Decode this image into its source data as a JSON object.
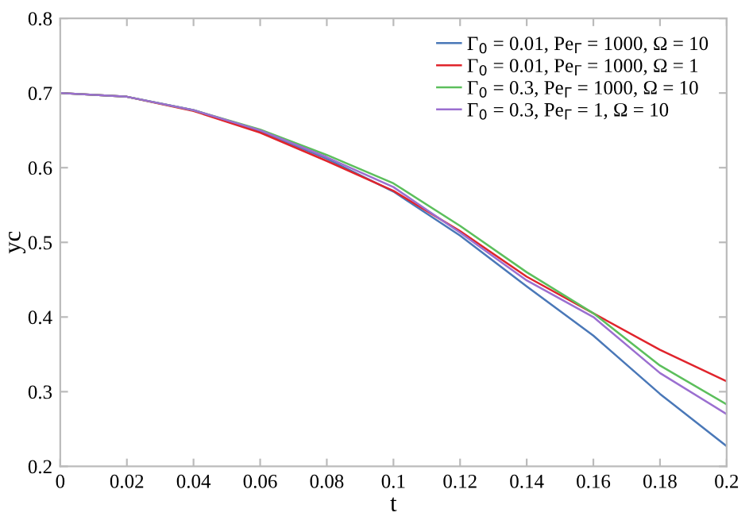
{
  "chart_data": {
    "type": "line",
    "xlabel": "t",
    "ylabel": "yc",
    "x": [
      0,
      0.02,
      0.04,
      0.06,
      0.08,
      0.1,
      0.12,
      0.14,
      0.16,
      0.18,
      0.2
    ],
    "series": [
      {
        "name": "Γ$_{0}$ = 0.01, Pe$_{Γ}$ = 1000, Ω = 10",
        "color": "#4a78b8",
        "values": [
          0.7,
          0.695,
          0.677,
          0.649,
          0.612,
          0.568,
          0.509,
          0.441,
          0.375,
          0.297,
          0.227
        ]
      },
      {
        "name": "Γ$_{0}$ = 0.01, Pe$_{Γ}$ = 1000, Ω = 1",
        "color": "#e0242c",
        "values": [
          0.7,
          0.695,
          0.676,
          0.647,
          0.609,
          0.569,
          0.515,
          0.454,
          0.405,
          0.356,
          0.314
        ]
      },
      {
        "name": "Γ$_{0}$ = 0.3, Pe$_{Γ}$ = 1000, Ω = 10",
        "color": "#5cbf5c",
        "values": [
          0.7,
          0.695,
          0.677,
          0.651,
          0.617,
          0.579,
          0.522,
          0.46,
          0.405,
          0.335,
          0.283
        ]
      },
      {
        "name": "Γ$_{0}$ = 0.3, Pe$_{Γ}$ = 1, Ω = 10",
        "color": "#9b6fd0",
        "values": [
          0.7,
          0.695,
          0.677,
          0.65,
          0.614,
          0.574,
          0.513,
          0.449,
          0.4,
          0.325,
          0.27
        ]
      }
    ],
    "xlim": [
      0,
      0.2
    ],
    "ylim": [
      0.2,
      0.8
    ],
    "xticks": [
      0,
      0.02,
      0.04,
      0.06,
      0.08,
      0.1,
      0.12,
      0.14,
      0.16,
      0.18,
      0.2
    ],
    "yticks": [
      0.2,
      0.3,
      0.4,
      0.5,
      0.6,
      0.7,
      0.8
    ],
    "legend": "top right",
    "grid": false
  }
}
